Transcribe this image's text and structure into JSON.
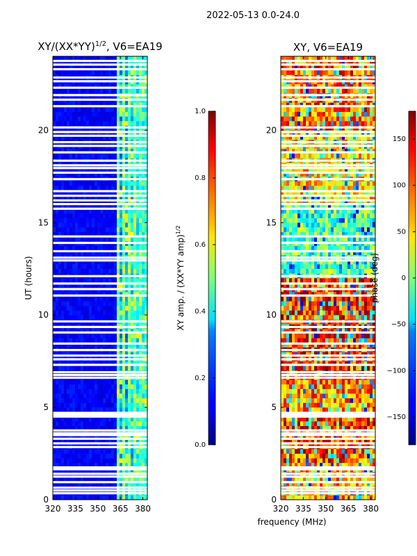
{
  "figure_title": "2022-05-13 0.0-24.0",
  "xlabel": "frequency (MHz)",
  "chart_data": [
    {
      "type": "heatmap",
      "title": "XY/(XX*YY)^1/2, V6=EA19",
      "title_main": "XY/(XX*YY)",
      "title_sup": "1/2",
      "title_rest": ", V6=EA19",
      "xlabel": "",
      "ylabel": "UT (hours)",
      "xlim": [
        320,
        383
      ],
      "ylim": [
        0,
        24
      ],
      "xticks": [
        320,
        335,
        350,
        365,
        380
      ],
      "yticks": [
        0,
        5,
        10,
        15,
        20
      ],
      "colorbar": {
        "label_main": "XY amp. / (XX*YY amp)",
        "label_sup": "1/2",
        "range": [
          0.0,
          1.0
        ],
        "ticks": [
          "0.0",
          "0.2",
          "0.4",
          "0.6",
          "0.8",
          "1.0"
        ],
        "tick_values": [
          0.0,
          0.2,
          0.4,
          0.6,
          0.8,
          1.0
        ]
      },
      "description": "normalized XY amplitude, mostly low (~0.1) with higher values (0.3-0.6) in 360-383 MHz band"
    },
    {
      "type": "heatmap",
      "title": "XY, V6=EA19",
      "xlabel": "frequency (MHz)",
      "ylabel": "",
      "xlim": [
        320,
        383
      ],
      "ylim": [
        0,
        24
      ],
      "xticks": [
        320,
        335,
        350,
        365,
        380
      ],
      "yticks": [
        0,
        5,
        10,
        15,
        20
      ],
      "colorbar": {
        "label_main": "phase (deg)",
        "range": [
          -180,
          180
        ],
        "ticks": [
          "−150",
          "−100",
          "−50",
          "0",
          "50",
          "100",
          "150"
        ],
        "tick_values": [
          -150,
          -100,
          -50,
          0,
          50,
          100,
          150
        ]
      },
      "description": "XY phase, mixed values, predominantly 90-180 deg in 2-12 h and 20-24 h"
    }
  ],
  "gap_rows_hours": [
    0.35,
    0.5,
    0.65,
    0.95,
    1.25,
    1.4,
    1.65,
    1.75,
    2.85,
    3.05,
    3.3,
    3.5,
    3.6,
    3.75,
    4.5,
    4.6,
    4.7,
    6.6,
    6.75,
    6.9,
    7.3,
    7.6,
    7.8,
    8.1,
    8.45,
    9.05,
    9.35,
    9.65,
    11.05,
    11.4,
    11.7,
    12.1,
    12.95,
    13.1,
    13.45,
    13.9,
    14.25,
    15.75,
    16.0,
    16.2,
    16.45,
    16.7,
    17.35,
    17.7,
    17.95,
    18.1,
    18.35,
    18.8,
    19.15,
    19.35,
    19.7,
    19.9,
    20.15,
    21.3,
    21.65,
    21.9,
    22.3,
    22.65,
    22.85,
    23.3,
    23.55,
    23.75
  ]
}
